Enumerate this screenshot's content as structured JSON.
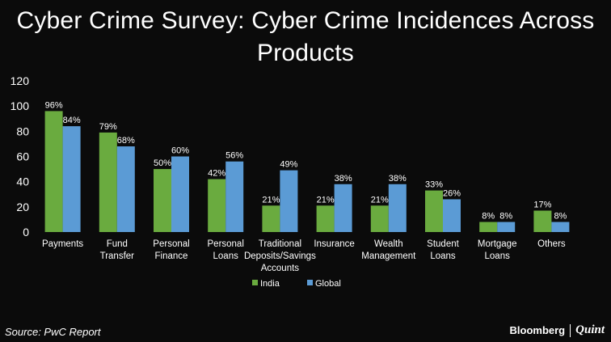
{
  "header": {
    "title_line1": "Cyber Crime Survey: Cyber Crime Incidences  Across",
    "title_line2": "Products"
  },
  "footer": {
    "source": "Source: PwC Report",
    "brand_left": "Bloomberg",
    "brand_right": "Quint"
  },
  "chart_data": {
    "type": "bar",
    "title": "Cyber Crime Survey: Cyber Crime Incidences  Across Products",
    "xlabel": "",
    "ylabel": "",
    "ylim": [
      0,
      120
    ],
    "yticks": [
      0,
      20,
      40,
      60,
      80,
      100,
      120
    ],
    "grid": false,
    "legend_position": "bottom",
    "categories": [
      [
        "Payments"
      ],
      [
        "Fund",
        "Transfer"
      ],
      [
        "Personal",
        "Finance"
      ],
      [
        "Personal",
        "Loans"
      ],
      [
        "Traditional",
        "Deposits/Savings",
        "Accounts"
      ],
      [
        "Insurance"
      ],
      [
        "Wealth",
        "Management"
      ],
      [
        "Student",
        "Loans"
      ],
      [
        "Mortgage",
        "Loans"
      ],
      [
        "Others"
      ]
    ],
    "series": [
      {
        "name": "India",
        "color": "#6aab3f",
        "values": [
          96,
          79,
          50,
          42,
          21,
          21,
          21,
          33,
          8,
          17
        ],
        "labels": [
          "96%",
          "79%",
          "50%",
          "42%",
          "21%",
          "21%",
          "21%",
          "33%",
          "8%",
          "17%"
        ]
      },
      {
        "name": "Global",
        "color": "#5b9bd5",
        "values": [
          84,
          68,
          60,
          56,
          49,
          38,
          38,
          26,
          8,
          8
        ],
        "labels": [
          "84%",
          "68%",
          "60%",
          "56%",
          "49%",
          "38%",
          "38%",
          "26%",
          "8%",
          "8%"
        ]
      }
    ]
  }
}
